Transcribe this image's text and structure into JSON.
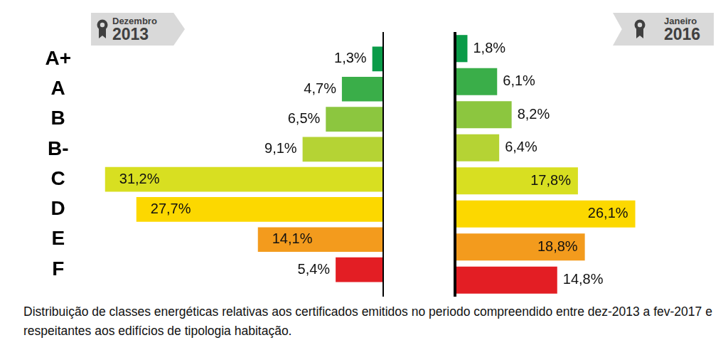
{
  "chart_data": {
    "type": "bar",
    "orientation": "horizontal",
    "categories": [
      "A+",
      "A",
      "B",
      "B-",
      "C",
      "D",
      "E",
      "F"
    ],
    "series": [
      {
        "name": "Dezembro 2013",
        "values": [
          1.3,
          4.7,
          6.5,
          9.1,
          31.2,
          27.7,
          14.1,
          5.4
        ],
        "value_labels": [
          "1,3%",
          "4,7%",
          "6,5%",
          "9,1%",
          "31,2%",
          "27,7%",
          "14,1%",
          "5,4%"
        ]
      },
      {
        "name": "Janeiro 2016",
        "values": [
          1.8,
          6.1,
          8.2,
          6.4,
          17.8,
          26.1,
          18.8,
          14.8
        ],
        "value_labels": [
          "1,8%",
          "6,1%",
          "8,2%",
          "6,4%",
          "17,8%",
          "26,1%",
          "18,8%",
          "14,8%"
        ]
      }
    ],
    "colors": [
      "#0a9b48",
      "#3aae49",
      "#8cc63f",
      "#b5d334",
      "#d8df21",
      "#fcd800",
      "#f39b1d",
      "#e31e24"
    ],
    "xlim": [
      0,
      35
    ],
    "grid": false,
    "tick_labels": "y",
    "data_labels": true,
    "legend": "top",
    "annotations": [
      "Distribuição de classes energéticas relativas aos certificados emitidos no periodo compreendido entre dez-2013 a fev-2017 e respeitantes aos edifícios de tipologia habitação."
    ]
  }
}
